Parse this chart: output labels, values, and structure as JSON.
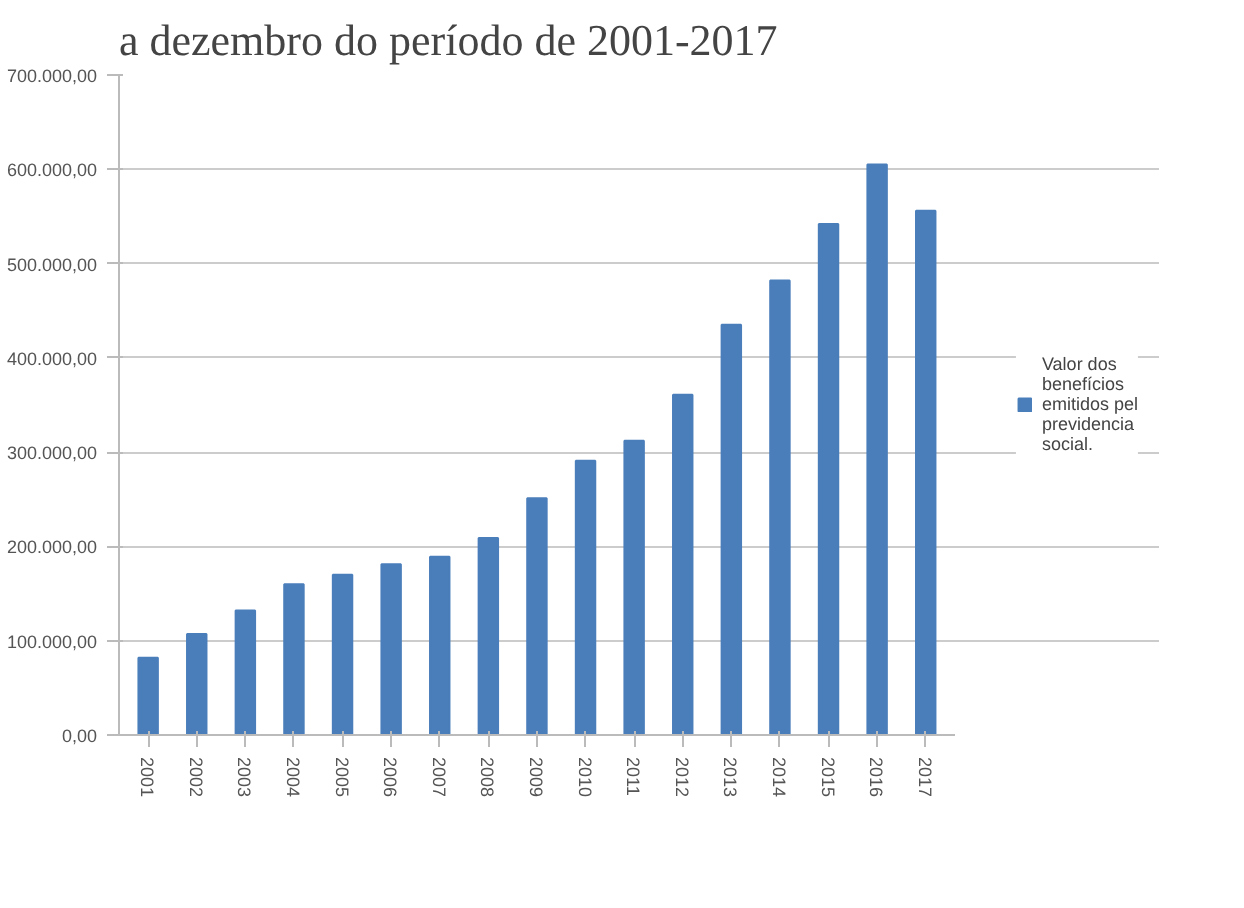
{
  "chart_data": {
    "type": "bar",
    "title": "a dezembro do período de 2001-2017",
    "categories": [
      "2001",
      "2002",
      "2003",
      "2004",
      "2005",
      "2006",
      "2007",
      "2008",
      "2009",
      "2010",
      "2011",
      "2012",
      "2013",
      "2014",
      "2015",
      "2016",
      "2017"
    ],
    "series": [
      {
        "name": "Valor dos benefícios emitidos pel previdencia social.",
        "color": "#4a7ebb",
        "values": [
          82000,
          107000,
          132000,
          160000,
          170000,
          181000,
          189000,
          209000,
          251000,
          291000,
          312000,
          361000,
          435000,
          482000,
          542000,
          605000,
          556000
        ]
      }
    ],
    "ylim": [
      0,
      700000
    ],
    "yticks": [
      {
        "value": 0,
        "label": "0,00"
      },
      {
        "value": 100000,
        "label": "100.000,00"
      },
      {
        "value": 200000,
        "label": "200.000,00"
      },
      {
        "value": 300000,
        "label": "300.000,00"
      },
      {
        "value": 400000,
        "label": "400.000,00"
      },
      {
        "value": 500000,
        "label": "500.000,00"
      },
      {
        "value": 600000,
        "label": "600.000,00"
      },
      {
        "value": 700000,
        "label": "700.000,00"
      }
    ],
    "grid": "y",
    "legend": "right"
  }
}
